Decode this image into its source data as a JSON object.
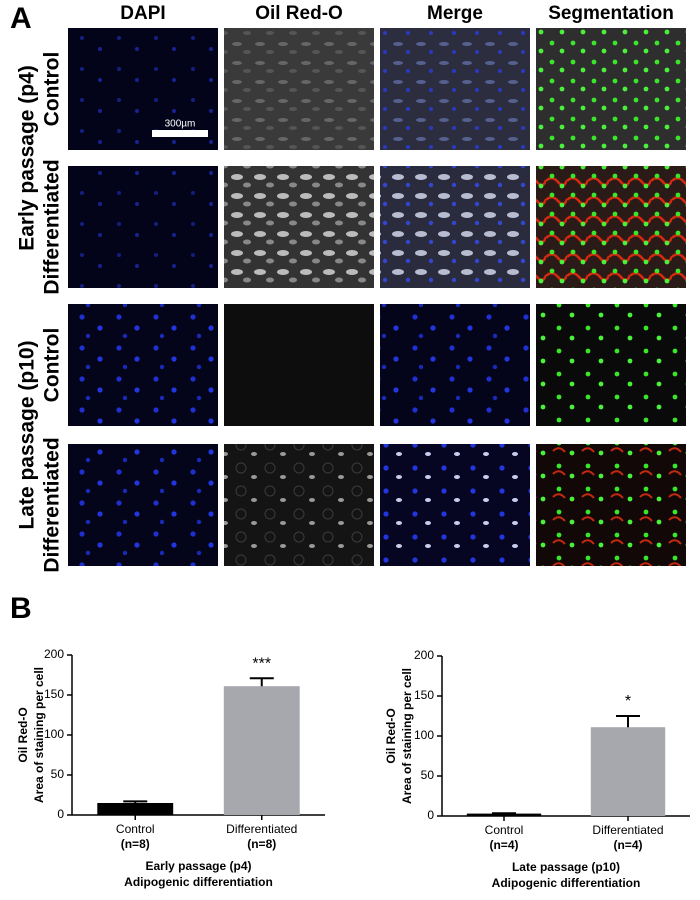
{
  "panel_a": {
    "label": "A",
    "columns": [
      "DAPI",
      "Oil Red-O",
      "Merge",
      "Segmentation"
    ],
    "groups": [
      "Early passage (p4)",
      "Late passage (p10)"
    ],
    "conditions": [
      "Control",
      "Differentiated"
    ],
    "scale_bar": "300µm"
  },
  "panel_b": {
    "label": "B"
  },
  "chart_data": [
    {
      "type": "bar",
      "categories": [
        "Control",
        "Differentiated"
      ],
      "category_notes": [
        "(n=8)",
        "(n=8)"
      ],
      "values": [
        15,
        161
      ],
      "errors": [
        2,
        10
      ],
      "colors": [
        "#000000",
        "#a7a7ae"
      ],
      "significance": [
        null,
        "***"
      ],
      "ylabel": [
        "Oil Red-O",
        "Area of staining per cell"
      ],
      "xlabel": [
        "Early passage (p4)",
        "Adipogenic differentiation"
      ],
      "ylim": [
        0,
        200
      ],
      "yticks": [
        0,
        50,
        100,
        150,
        200
      ]
    },
    {
      "type": "bar",
      "categories": [
        "Control",
        "Differentiated"
      ],
      "category_notes": [
        "(n=4)",
        "(n=4)"
      ],
      "values": [
        3,
        111
      ],
      "errors": [
        0.5,
        14
      ],
      "colors": [
        "#000000",
        "#a7a7ae"
      ],
      "significance": [
        null,
        "*"
      ],
      "ylabel": [
        "Oil Red-O",
        "Area of staining per cell"
      ],
      "xlabel": [
        "Late passage (p10)",
        "Adipogenic differentiation"
      ],
      "ylim": [
        0,
        200
      ],
      "yticks": [
        0,
        50,
        100,
        150,
        200
      ]
    }
  ]
}
